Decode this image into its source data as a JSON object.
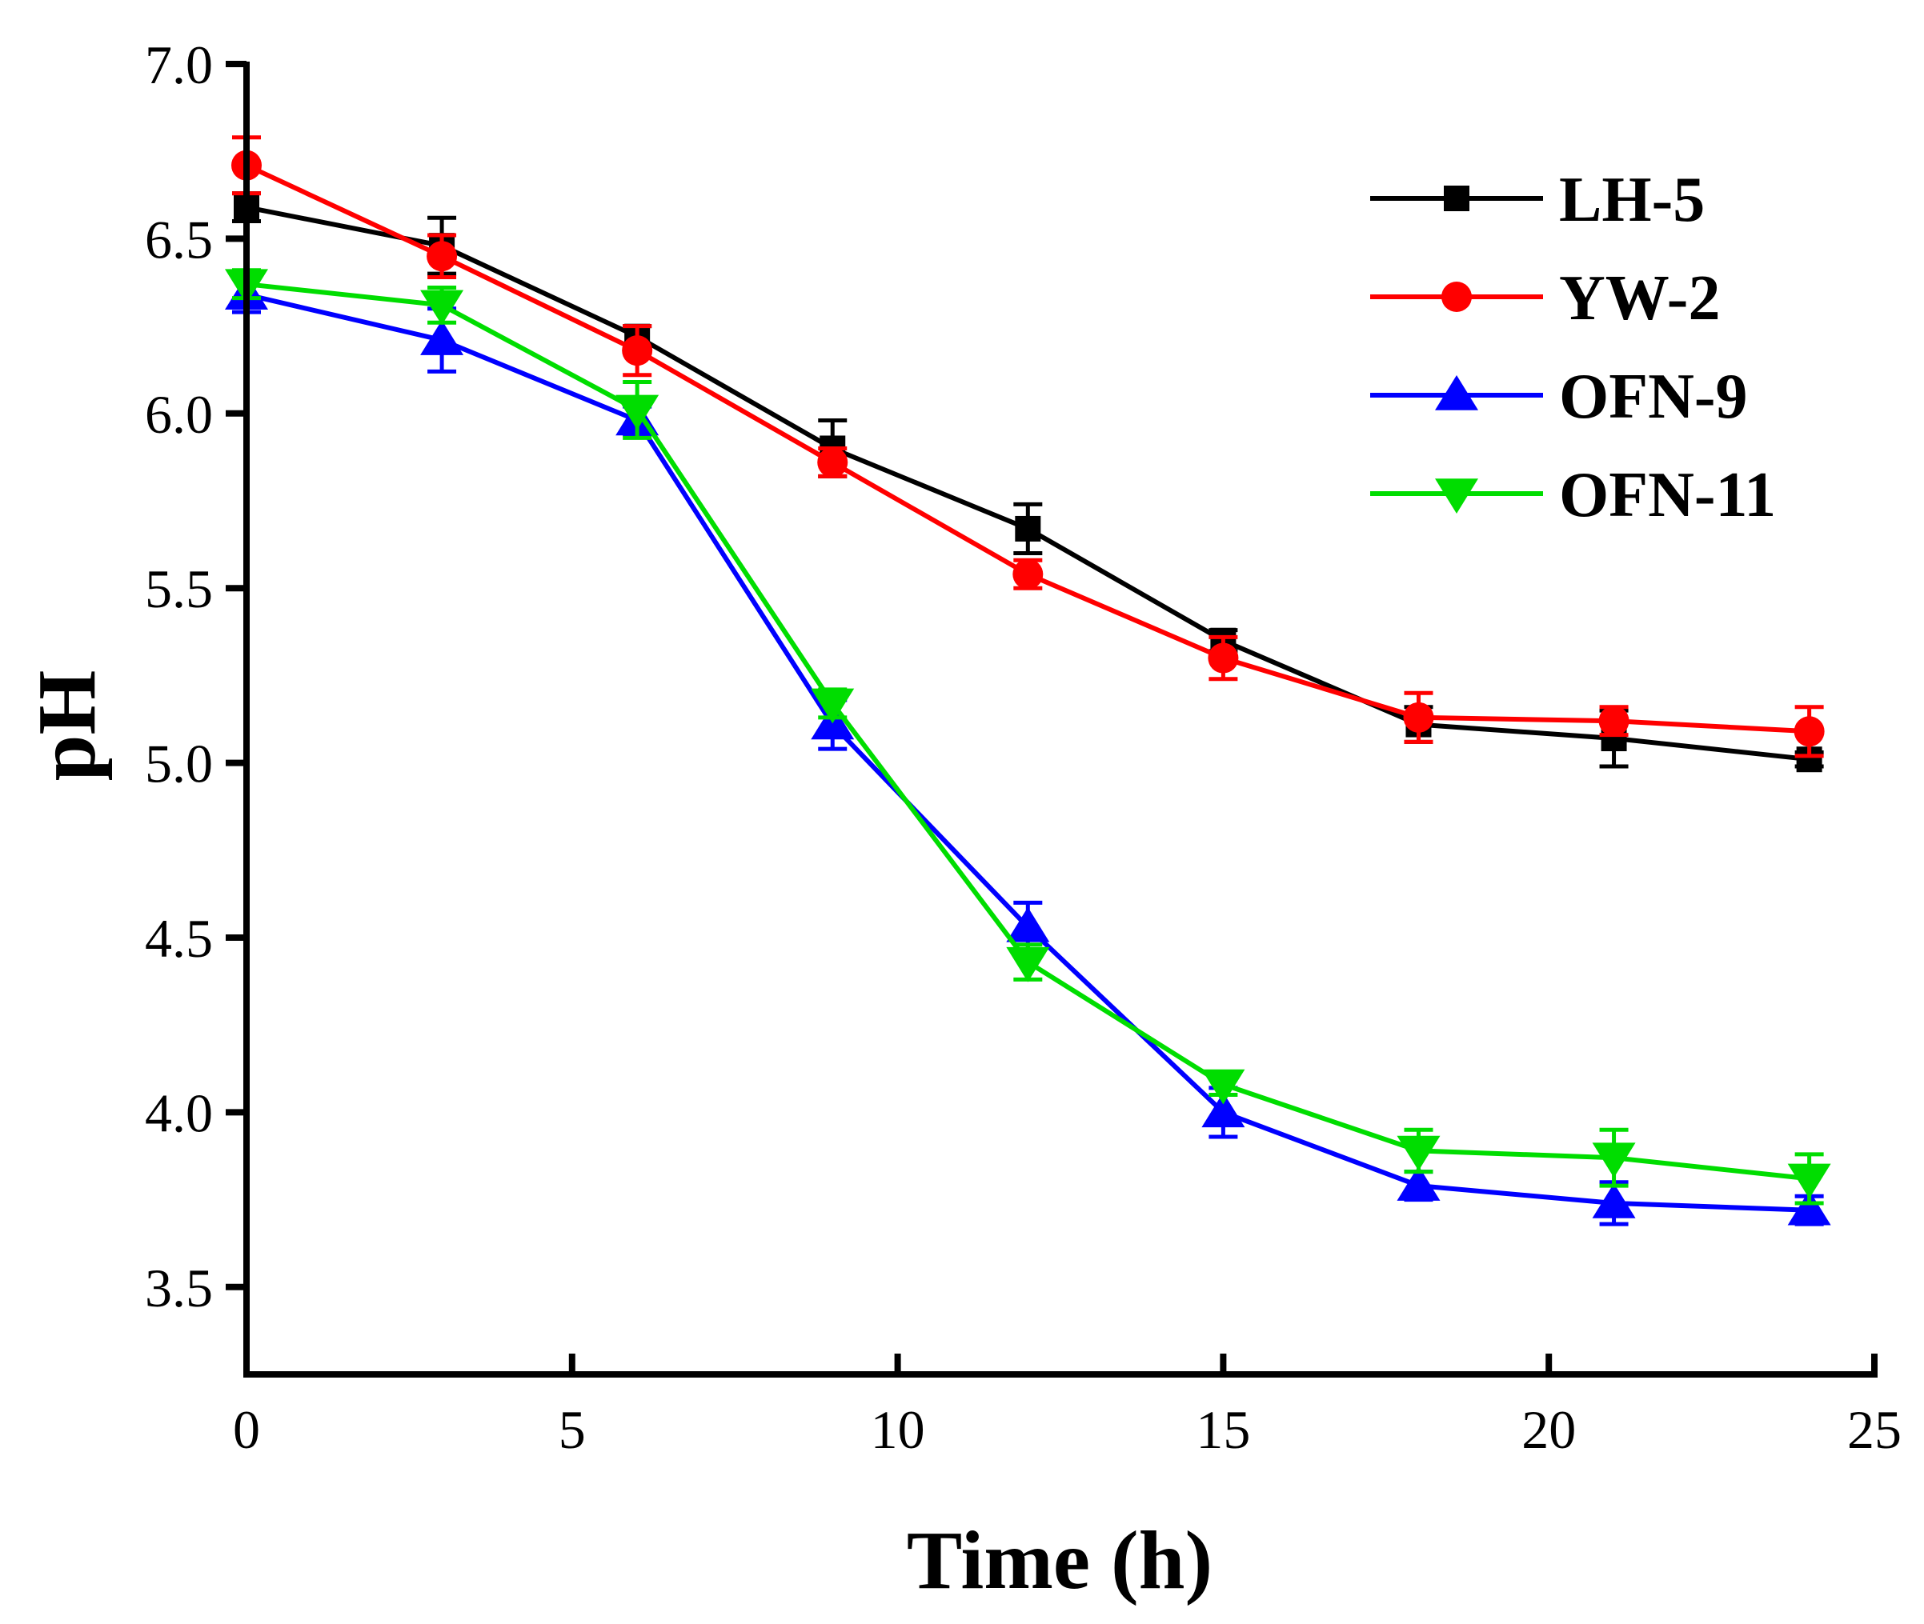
{
  "chart_data": {
    "type": "line",
    "title": "",
    "xlabel": "Time (h)",
    "ylabel": "pH",
    "xlim": [
      0,
      25
    ],
    "ylim": [
      3.25,
      7.0
    ],
    "xticks": [
      0,
      5,
      10,
      15,
      20,
      25
    ],
    "xtick_labels": [
      "0",
      "5",
      "10",
      "15",
      "20",
      "25"
    ],
    "yticks": [
      3.5,
      4.0,
      4.5,
      5.0,
      5.5,
      6.0,
      6.5,
      7.0
    ],
    "ytick_labels": [
      "3.5",
      "4.0",
      "4.5",
      "5.0",
      "5.5",
      "6.0",
      "6.5",
      "7.0"
    ],
    "grid": false,
    "legend_position": "top-right",
    "x": [
      0,
      3,
      6,
      9,
      12,
      15,
      18,
      21,
      24
    ],
    "series": [
      {
        "name": "LH-5",
        "color": "#000000",
        "marker": "square",
        "values": [
          6.59,
          6.48,
          6.22,
          5.9,
          5.67,
          5.35,
          5.11,
          5.07,
          5.01
        ],
        "errors": [
          0.04,
          0.08,
          0.03,
          0.08,
          0.07,
          0.03,
          0.05,
          0.08,
          0.02
        ]
      },
      {
        "name": "YW-2",
        "color": "#ff0000",
        "marker": "circle",
        "values": [
          6.71,
          6.45,
          6.18,
          5.86,
          5.54,
          5.3,
          5.13,
          5.12,
          5.09
        ],
        "errors": [
          0.08,
          0.06,
          0.07,
          0.04,
          0.04,
          0.06,
          0.07,
          0.04,
          0.07
        ]
      },
      {
        "name": "OFN-9",
        "color": "#0000ff",
        "marker": "triangle-up",
        "values": [
          6.34,
          6.21,
          5.98,
          5.11,
          4.53,
          4.0,
          3.79,
          3.74,
          3.72
        ],
        "errors": [
          0.05,
          0.09,
          0.04,
          0.07,
          0.07,
          0.07,
          0.04,
          0.06,
          0.04
        ]
      },
      {
        "name": "OFN-11",
        "color": "#00dd00",
        "marker": "triangle-down",
        "values": [
          6.37,
          6.31,
          6.01,
          5.17,
          4.43,
          4.08,
          3.89,
          3.87,
          3.81
        ],
        "errors": [
          0.04,
          0.05,
          0.08,
          0.04,
          0.05,
          0.03,
          0.06,
          0.08,
          0.07
        ]
      }
    ]
  }
}
